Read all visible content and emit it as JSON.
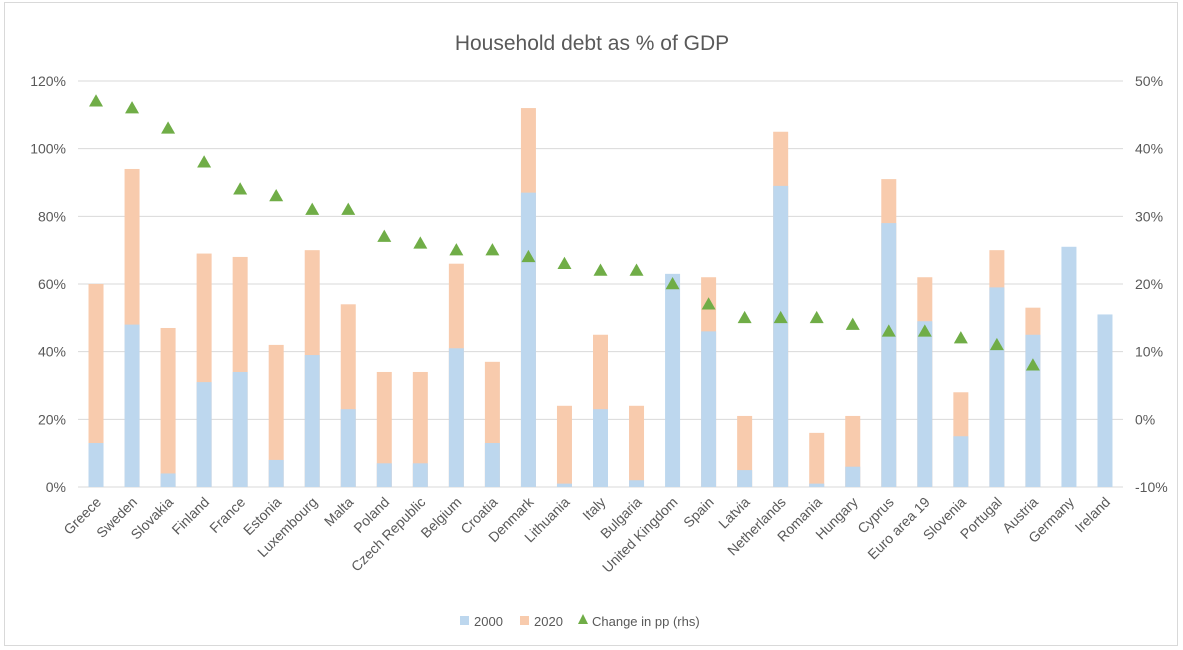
{
  "chart_data": {
    "type": "bar",
    "title": "Household debt as % of GDP",
    "categories": [
      "Greece",
      "Sweden",
      "Slovakia",
      "Finland",
      "France",
      "Estonia",
      "Luxembourg",
      "Malta",
      "Poland",
      "Czech Republic",
      "Belgium",
      "Croatia",
      "Denmark",
      "Lithuania",
      "Italy",
      "Bulgaria",
      "United Kingdom",
      "Spain",
      "Latvia",
      "Netherlands",
      "Romania",
      "Hungary",
      "Cyprus",
      "Euro area 19",
      "Slovenia",
      "Portugal",
      "Austria",
      "Germany",
      "Ireland"
    ],
    "series": [
      {
        "name": "2000",
        "axis": "left",
        "kind": "bar",
        "color": "#bdd7ee",
        "values": [
          13,
          48,
          4,
          31,
          34,
          8,
          39,
          23,
          7,
          7,
          41,
          13,
          87,
          1,
          23,
          2,
          63,
          46,
          5,
          89,
          1,
          6,
          78,
          49,
          15,
          59,
          45,
          71,
          51
        ]
      },
      {
        "name": "2020",
        "axis": "left",
        "kind": "bar",
        "color": "#f8cbad",
        "values": [
          60,
          94,
          47,
          69,
          68,
          42,
          70,
          54,
          34,
          34,
          66,
          37,
          112,
          24,
          45,
          24,
          null,
          62,
          21,
          105,
          16,
          21,
          91,
          62,
          28,
          70,
          53,
          null,
          null
        ]
      },
      {
        "name": "Change in pp (rhs)",
        "axis": "right",
        "kind": "marker",
        "marker": "triangle",
        "color": "#70ad47",
        "values": [
          47,
          46,
          43,
          38,
          34,
          33,
          31,
          31,
          27,
          26,
          25,
          25,
          24,
          23,
          22,
          22,
          20,
          17,
          15,
          15,
          15,
          14,
          13,
          13,
          12,
          11,
          8,
          null,
          null
        ]
      }
    ],
    "y_left": {
      "min": 0,
      "max": 120,
      "step": 20,
      "ticks": [
        "0%",
        "20%",
        "40%",
        "60%",
        "80%",
        "100%",
        "120%"
      ]
    },
    "y_right": {
      "min": -10,
      "max": 50,
      "step": 10,
      "ticks": [
        "-10%",
        "0%",
        "10%",
        "20%",
        "30%",
        "40%",
        "50%"
      ]
    },
    "grid": true,
    "legend_position": "bottom"
  }
}
